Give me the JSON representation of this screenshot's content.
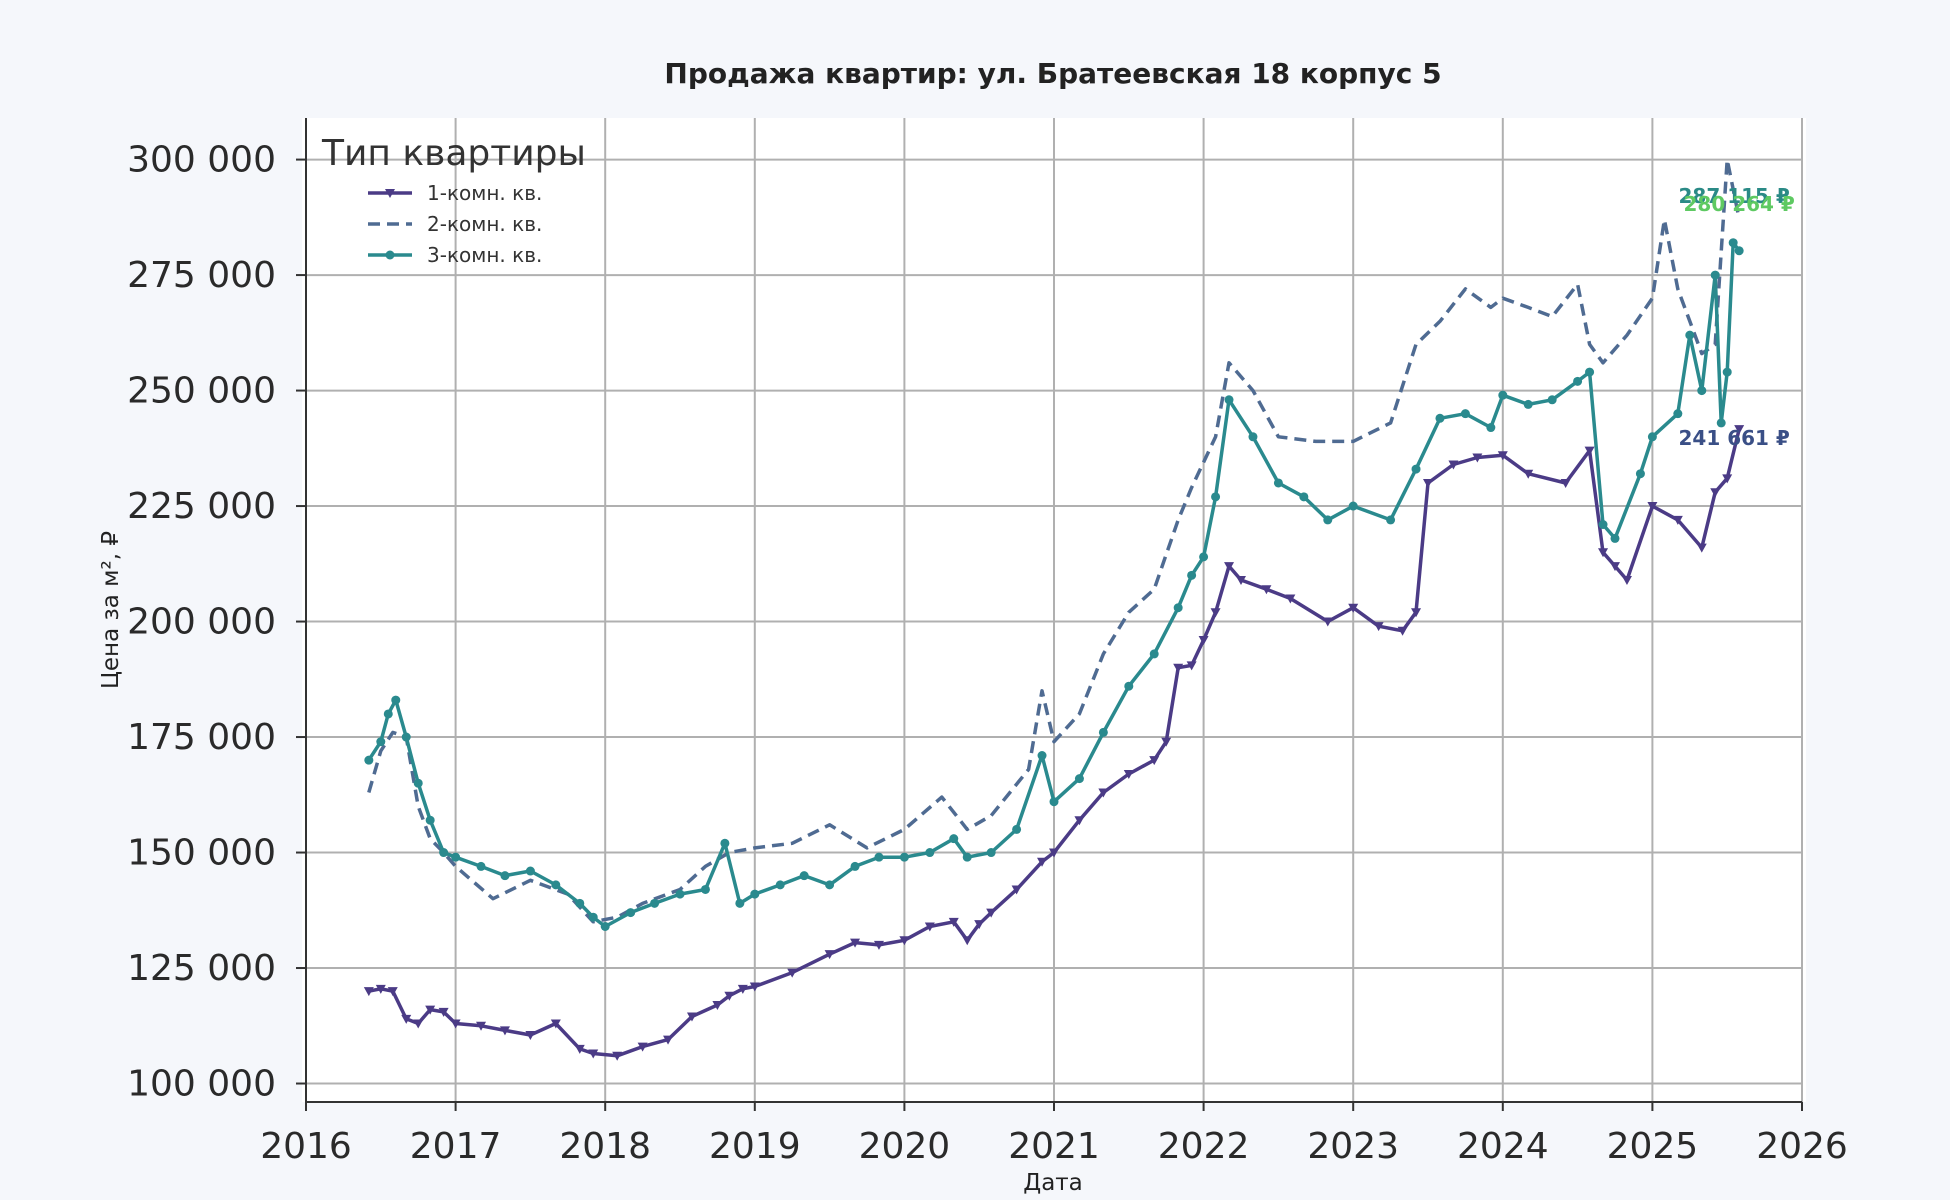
{
  "chart_data": {
    "type": "line",
    "title": "Продажа квартир: ул. Братеевская 18 корпус 5",
    "xlabel": "Дата",
    "ylabel": "Цена за м², ₽",
    "xlim": [
      2016,
      2026
    ],
    "ylim": [
      96000,
      309000
    ],
    "x_ticks": [
      "2016",
      "2017",
      "2018",
      "2019",
      "2020",
      "2021",
      "2022",
      "2023",
      "2024",
      "2025",
      "2026"
    ],
    "y_ticks": [
      "100 000",
      "125 000",
      "150 000",
      "175 000",
      "200 000",
      "225 000",
      "250 000",
      "275 000",
      "300 000"
    ],
    "grid": true,
    "legend": {
      "title": "Тип квартиры",
      "position": "top-left"
    },
    "series": [
      {
        "name": "1-комн. кв.",
        "color": "#4b3b86",
        "style": "solid",
        "marker": "triangle-down",
        "end_label": "241 661 ₽",
        "end_label_color": "#3a4f86",
        "x": [
          2016.42,
          2016.5,
          2016.58,
          2016.67,
          2016.75,
          2016.83,
          2016.92,
          2017.0,
          2017.17,
          2017.33,
          2017.5,
          2017.67,
          2017.83,
          2017.92,
          2018.08,
          2018.25,
          2018.42,
          2018.58,
          2018.75,
          2018.83,
          2018.92,
          2019.0,
          2019.25,
          2019.5,
          2019.67,
          2019.83,
          2020.0,
          2020.17,
          2020.33,
          2020.42,
          2020.5,
          2020.58,
          2020.75,
          2020.92,
          2021.0,
          2021.17,
          2021.33,
          2021.5,
          2021.67,
          2021.75,
          2021.83,
          2021.92,
          2022.0,
          2022.08,
          2022.17,
          2022.25,
          2022.42,
          2022.58,
          2022.83,
          2023.0,
          2023.17,
          2023.33,
          2023.42,
          2023.5,
          2023.67,
          2023.83,
          2024.0,
          2024.17,
          2024.42,
          2024.58,
          2024.67,
          2024.75,
          2024.83,
          2025.0,
          2025.17,
          2025.33,
          2025.42,
          2025.5,
          2025.58
        ],
        "values": [
          120000,
          120500,
          120000,
          114000,
          113000,
          116000,
          115500,
          113000,
          112500,
          111500,
          110500,
          113000,
          107500,
          106500,
          106000,
          108000,
          109500,
          114500,
          117000,
          119000,
          120500,
          121000,
          124000,
          128000,
          130500,
          130000,
          131000,
          134000,
          135000,
          131000,
          134500,
          137000,
          142000,
          148000,
          150000,
          157000,
          163000,
          167000,
          170000,
          174000,
          190000,
          190500,
          196000,
          202000,
          212000,
          209000,
          207000,
          205000,
          200000,
          203000,
          199000,
          198000,
          202000,
          230000,
          234000,
          235500,
          236000,
          232000,
          230000,
          237000,
          215000,
          212000,
          209000,
          225000,
          222000,
          216000,
          228000,
          231000,
          241661
        ]
      },
      {
        "name": "2-комн. кв.",
        "color": "#4f6b92",
        "style": "dashed",
        "marker": "none",
        "end_label": "287 115 ₽",
        "end_label_color": "#2a8a86",
        "x": [
          2016.42,
          2016.5,
          2016.58,
          2016.67,
          2016.75,
          2016.83,
          2016.92,
          2017.0,
          2017.25,
          2017.5,
          2017.75,
          2017.92,
          2018.08,
          2018.25,
          2018.5,
          2018.67,
          2018.83,
          2019.0,
          2019.25,
          2019.5,
          2019.75,
          2020.0,
          2020.25,
          2020.42,
          2020.58,
          2020.83,
          2020.92,
          2021.0,
          2021.17,
          2021.33,
          2021.5,
          2021.67,
          2021.83,
          2021.92,
          2022.08,
          2022.17,
          2022.33,
          2022.5,
          2022.75,
          2023.0,
          2023.25,
          2023.42,
          2023.58,
          2023.75,
          2023.92,
          2024.0,
          2024.17,
          2024.33,
          2024.5,
          2024.58,
          2024.67,
          2024.83,
          2025.0,
          2025.08,
          2025.17,
          2025.33,
          2025.42,
          2025.5,
          2025.58
        ],
        "values": [
          163000,
          172000,
          176000,
          175000,
          160000,
          153000,
          150000,
          147000,
          140000,
          144000,
          141000,
          135000,
          136000,
          139000,
          142000,
          147000,
          150000,
          151000,
          152000,
          156000,
          151000,
          155000,
          162000,
          155000,
          158000,
          168000,
          185000,
          174000,
          180000,
          193000,
          202000,
          207000,
          222000,
          229000,
          240000,
          256000,
          250000,
          240000,
          239000,
          239000,
          243000,
          260000,
          265000,
          272000,
          268000,
          270000,
          268000,
          266000,
          273000,
          260000,
          256000,
          262000,
          270000,
          287000,
          272000,
          258000,
          260000,
          300000,
          287115
        ]
      },
      {
        "name": "3-комн. кв.",
        "color": "#2a8a8e",
        "style": "solid",
        "marker": "circle",
        "end_label": "280 264 ₽",
        "end_label_color": "#5ec962",
        "x": [
          2016.42,
          2016.5,
          2016.55,
          2016.6,
          2016.67,
          2016.75,
          2016.83,
          2016.92,
          2017.0,
          2017.17,
          2017.33,
          2017.5,
          2017.67,
          2017.83,
          2017.92,
          2018.0,
          2018.17,
          2018.33,
          2018.5,
          2018.67,
          2018.8,
          2018.9,
          2019.0,
          2019.17,
          2019.33,
          2019.5,
          2019.67,
          2019.83,
          2020.0,
          2020.17,
          2020.33,
          2020.42,
          2020.58,
          2020.75,
          2020.92,
          2021.0,
          2021.17,
          2021.33,
          2021.5,
          2021.67,
          2021.83,
          2021.92,
          2022.0,
          2022.08,
          2022.17,
          2022.33,
          2022.5,
          2022.67,
          2022.83,
          2023.0,
          2023.25,
          2023.42,
          2023.58,
          2023.75,
          2023.92,
          2024.0,
          2024.17,
          2024.33,
          2024.5,
          2024.58,
          2024.67,
          2024.75,
          2024.92,
          2025.0,
          2025.17,
          2025.25,
          2025.33,
          2025.42,
          2025.46,
          2025.5,
          2025.54,
          2025.58
        ],
        "values": [
          170000,
          174000,
          180000,
          183000,
          175000,
          165000,
          157000,
          150000,
          149000,
          147000,
          145000,
          146000,
          143000,
          139000,
          136000,
          134000,
          137000,
          139000,
          141000,
          142000,
          152000,
          139000,
          141000,
          143000,
          145000,
          143000,
          147000,
          149000,
          149000,
          150000,
          153000,
          149000,
          150000,
          155000,
          171000,
          161000,
          166000,
          176000,
          186000,
          193000,
          203000,
          210000,
          214000,
          227000,
          248000,
          240000,
          230000,
          227000,
          222000,
          225000,
          222000,
          233000,
          244000,
          245000,
          242000,
          249000,
          247000,
          248000,
          252000,
          254000,
          221000,
          218000,
          232000,
          240000,
          245000,
          262000,
          250000,
          275000,
          243000,
          254000,
          282000,
          280264
        ]
      }
    ]
  }
}
